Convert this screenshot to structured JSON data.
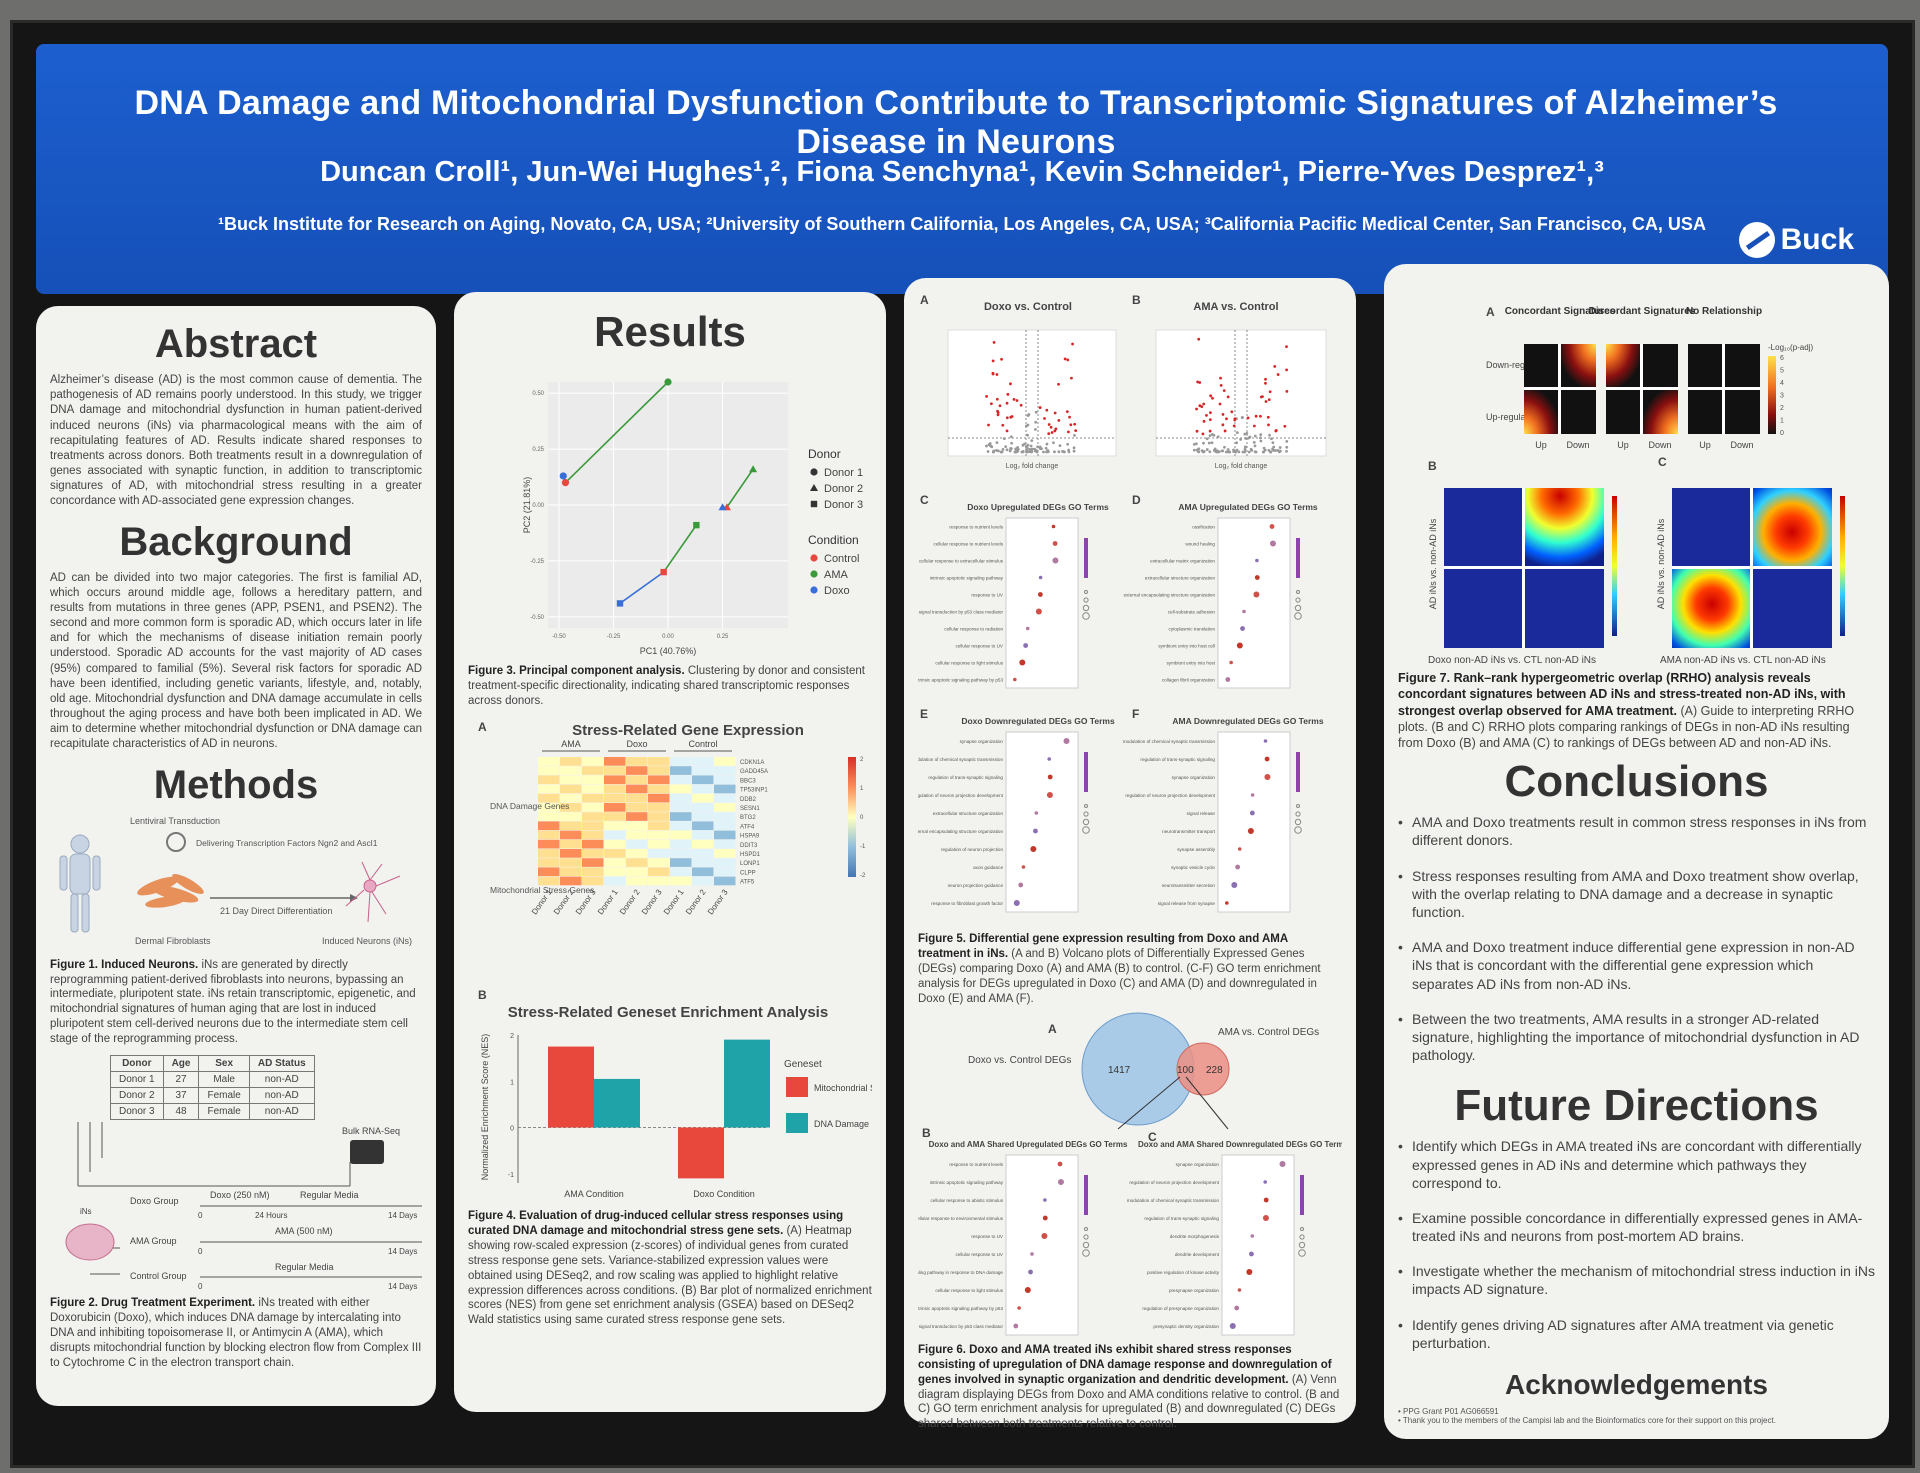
{
  "header": {
    "title": "DNA Damage and Mitochondrial Dysfunction Contribute to Transcriptomic Signatures of Alzheimer’s Disease in Neurons",
    "authors": "Duncan Croll¹, Jun-Wei Hughes¹,², Fiona Senchyna¹, Kevin Schneider¹, Pierre-Yves Desprez¹,³",
    "affiliations": "¹Buck Institute for Research on Aging, Novato, CA, USA; ²University of Southern California, Los Angeles, CA, USA; ³California Pacific Medical Center, San Francisco, CA, USA",
    "logo": "Buck"
  },
  "abstract": {
    "heading": "Abstract",
    "text": "Alzheimer’s disease (AD) is the most common cause of dementia. The pathogenesis of AD remains poorly understood. In this study, we trigger DNA damage and mitochondrial dysfunction in human patient-derived induced neurons (iNs) via pharmacological means with the aim of recapitulating features of AD. Results indicate shared responses to treatments across donors. Both treatments result in a downregulation of genes associated with synaptic function, in addition to transcriptomic signatures of AD, with mitochondrial stress resulting in a greater concordance with AD-associated gene expression changes."
  },
  "background": {
    "heading": "Background",
    "text": "AD can be divided into two major categories. The first is familial AD, which occurs around middle age, follows a hereditary pattern, and results from mutations in three genes (APP, PSEN1, and PSEN2). The second and more common form is sporadic AD, which occurs later in life and for which the mechanisms of disease initiation remain poorly understood. Sporadic AD accounts for the vast majority of AD cases (95%) compared to familial (5%). Several risk factors for sporadic AD have been identified, including genetic variants, lifestyle, and, notably, old age. Mitochondrial dysfunction and DNA damage accumulate in cells throughout the aging process and have both been implicated in AD. We aim to determine whether mitochondrial dysfunction or DNA damage can recapitulate characteristics of AD in neurons."
  },
  "methods": {
    "heading": "Methods",
    "fig1_labels": {
      "lenti": "Lentiviral Transduction",
      "deliver": "Delivering Transcription Factors Ngn2 and Ascl1",
      "diff": "21 Day Direct Differentiation",
      "fibro": "Dermal Fibroblasts",
      "ins": "Induced Neurons (iNs)"
    },
    "fig1_caption_bold": "Figure 1. Induced Neurons.",
    "fig1_caption": " iNs are generated by directly reprogramming patient-derived fibroblasts into neurons, bypassing an intermediate, pluripotent state. iNs retain transcriptomic, epigenetic, and mitochondrial signatures of human aging that are lost in induced pluripotent stem cell-derived neurons due to the intermediate stem cell stage of the reprogramming process.",
    "table": {
      "headers": [
        "Donor",
        "Age",
        "Sex",
        "AD Status"
      ],
      "rows": [
        [
          "Donor 1",
          "27",
          "Male",
          "non-AD"
        ],
        [
          "Donor 2",
          "37",
          "Female",
          "non-AD"
        ],
        [
          "Donor 3",
          "48",
          "Female",
          "non-AD"
        ]
      ]
    },
    "fig2_labels": {
      "bulk": "Bulk RNA-Seq",
      "ins": "iNs",
      "doxo_group": "Doxo Group",
      "doxo_dose": "Doxo (250 nM)",
      "regular1": "Regular Media",
      "hours": "24 Hours",
      "days14a": "14 Days",
      "ama_group": "AMA Group",
      "ama_dose": "AMA (500 nM)",
      "days14b": "14 Days",
      "control_group": "Control Group",
      "regular2": "Regular Media",
      "days14c": "14 Days",
      "zero": "0"
    },
    "fig2_caption_bold": "Figure 2. Drug Treatment Experiment.",
    "fig2_caption": " iNs treated with either Doxorubicin (Doxo), which induces DNA damage by intercalating into DNA and inhibiting topoisomerase II, or Antimycin A (AMA), which disrupts mitochondrial function by blocking electron flow from Complex III to Cytochrome C in the electron transport chain."
  },
  "results": {
    "heading": "Results",
    "pca": {
      "xlabel": "PC1 (40.76%)",
      "ylabel": "PC2 (21.81%)",
      "legend_donor_title": "Donor",
      "legend_condition_title": "Condition",
      "fig3_caption_bold": "Figure 3. Principal component analysis.",
      "fig3_caption": " Clustering by donor and consistent treatment-specific directionality, indicating shared transcriptomic responses across donors."
    },
    "heatmap": {
      "panel": "A",
      "title": "Stress-Related Gene Expression",
      "groups": [
        "AMA",
        "Doxo",
        "Control"
      ],
      "row_groups": [
        "DNA Damage Genes",
        "Mitochondrial Stress Genes"
      ],
      "genes": [
        "CDKN1A",
        "GADD45A",
        "BBC3",
        "TP53INP1",
        "DDB2",
        "SESN1",
        "BTG2",
        "ATF4",
        "HSPA9",
        "DDIT3",
        "HSPD1",
        "LONP1",
        "CLPP",
        "ATF5"
      ],
      "columns": [
        "Donor 1",
        "Donor 2",
        "Donor 3",
        "Donor 1",
        "Donor 2",
        "Donor 3",
        "Donor 1",
        "Donor 2",
        "Donor 3"
      ],
      "scale_ticks": [
        "2",
        "1",
        "0",
        "-1",
        "-2"
      ]
    },
    "gsea_panel": "B",
    "fig4_caption_bold": "Figure 4. Evaluation of drug-induced cellular stress responses using curated DNA damage and mitochondrial stress gene sets.",
    "fig4_caption": " (A) Heatmap showing row-scaled expression (z-scores) of individual genes from curated stress response gene sets. Variance-stabilized expression values were obtained using DESeq2, and row scaling was applied to highlight relative expression differences across conditions. (B) Bar plot of normalized enrichment scores (NES) from gene set enrichment analysis (GSEA) based on DESeq2 Wald statistics using same curated stress response gene sets."
  },
  "volcano": {
    "a_title": "Doxo vs. Control",
    "b_title": "AMA vs. Control",
    "xlabel": "Log₂ fold change",
    "ylabel": "-Log₁₀ P"
  },
  "go_panels": {
    "c_title": "Doxo Upregulated DEGs GO Terms",
    "c_terms": [
      "response to nutrient levels",
      "cellular response to nutrient levels",
      "cellular response to extracellular stimulus",
      "intrinsic apoptotic signaling pathway",
      "response to UV",
      "signal transduction by p53 class mediator",
      "cellular response to radiation",
      "cellular response to UV",
      "cellular response to light stimulus",
      "intrinsic apoptotic signaling pathway by p53"
    ],
    "d_title": "AMA Upregulated DEGs GO Terms",
    "d_terms": [
      "ossification",
      "wound healing",
      "extracellular matrix organization",
      "extracellular structure organization",
      "external encapsulating structure organization",
      "cell-substrate adhesion",
      "cytoplasmic translation",
      "symbiont entry into host cell",
      "symbiont entry into host",
      "collagen fibril organization"
    ],
    "e_title": "Doxo Downregulated DEGs GO Terms",
    "e_terms": [
      "synapse organization",
      "modulation of chemical synaptic transmission",
      "regulation of trans-synaptic signaling",
      "regulation of neuron projection development",
      "extracellular structure organization",
      "external encapsulating structure organization",
      "regulation of neuron projection",
      "axon guidance",
      "neuron projection guidance",
      "response to fibroblast growth factor"
    ],
    "f_title": "AMA Downregulated DEGs GO Terms",
    "f_terms": [
      "modulation of chemical synaptic transmission",
      "regulation of trans-synaptic signaling",
      "synapse organization",
      "regulation of neuron projection development",
      "signal release",
      "neurotransmitter transport",
      "synapse assembly",
      "synaptic vesicle cycle",
      "neurotransmitter secretion",
      "signal release from synapse"
    ],
    "fig5_caption_bold": "Figure 5. Differential gene expression resulting from Doxo and AMA treatment in iNs.",
    "fig5_caption": " (A and B) Volcano plots of Differentially Expressed Genes (DEGs) comparing Doxo (A) and AMA (B) to control. (C-F) GO term enrichment analysis for DEGs upregulated in Doxo (C) and AMA (D) and downregulated in Doxo (E) and AMA (F)."
  },
  "venn": {
    "panel": "A",
    "left_label": "Doxo vs. Control DEGs",
    "right_label": "AMA vs. Control DEGs",
    "left_only": "1417",
    "shared": "100",
    "right_only": "228"
  },
  "shared_go": {
    "b_title": "Doxo and AMA Shared Upregulated DEGs GO Terms",
    "b_terms": [
      "response to nutrient levels",
      "intrinsic apoptotic signaling pathway",
      "cellular response to abiotic stimulus",
      "cellular response to environmental stimulus",
      "response to UV",
      "cellular response to UV",
      "intrinsic apoptotic signaling pathway in response to DNA damage",
      "cellular response to light stimulus",
      "intrinsic apoptotic signaling pathway by p53",
      "signal transduction by p53 class mediator"
    ],
    "c_title": "Doxo and AMA Shared Downregulated DEGs GO Terms",
    "c_terms": [
      "synapse organization",
      "regulation of neuron projection development",
      "modulation of chemical synaptic transmission",
      "regulation of trans-synaptic signaling",
      "dendrite morphogenesis",
      "dendrite development",
      "positive regulation of kinase activity",
      "presynapse organization",
      "regulation of presynapse organization",
      "presynaptic density organization"
    ],
    "fig6_caption_bold": "Figure 6. Doxo and AMA treated iNs exhibit shared stress responses consisting of upregulation of DNA damage response and downregulation of genes involved in synaptic organization and dendritic development.",
    "fig6_caption": " (A) Venn diagram displaying DEGs from Doxo and AMA conditions relative to control. (B and C) GO term enrichment analysis for upregulated (B) and downregulated (C) DEGs shared between both treatments relative to control."
  },
  "rrho": {
    "panel_a": "A",
    "col_labels": [
      "Concordant Signatures",
      "Discordant Signatures",
      "No Relationship"
    ],
    "row_labels": [
      "Down-regulated",
      "Up-regulated"
    ],
    "axis_labels": [
      "Up",
      "Down",
      "Up",
      "Down",
      "Up",
      "Down"
    ],
    "scale_title": "-Log₁₀(p-adj)",
    "scale_ticks": [
      "6",
      "5",
      "4",
      "3",
      "2",
      "1",
      "0"
    ],
    "panel_b": "B",
    "panel_c": "C",
    "b_ylabel": "AD iNs vs. non-AD iNs",
    "b_xlabel": "Doxo non-AD iNs vs. CTL non-AD iNs",
    "c_ylabel": "AD iNs vs. non-AD iNs",
    "c_xlabel": "AMA non-AD iNs vs. CTL non-AD iNs",
    "fig7_caption_bold": "Figure 7. Rank–rank hypergeometric overlap (RRHO) analysis reveals concordant signatures between AD iNs and stress-treated non-AD iNs, with strongest overlap observed for AMA treatment.",
    "fig7_caption": " (A) Guide to interpreting RRHO plots. (B and C) RRHO plots comparing rankings of DEGs in non-AD iNs resulting from Doxo (B) and AMA (C) to rankings of DEGs between AD and non-AD iNs."
  },
  "conclusions": {
    "heading": "Conclusions",
    "items": [
      "AMA and Doxo treatments result in common stress responses in iNs from different donors.",
      "Stress responses resulting from AMA and Doxo treatment show overlap, with the overlap relating to DNA damage and a decrease in synaptic function.",
      "AMA and Doxo treatment induce differential gene expression in non-AD iNs that is concordant with the differential gene expression which separates AD iNs from non-AD iNs.",
      "Between the two treatments, AMA results in a stronger AD-related signature, highlighting the importance of mitochondrial dysfunction in AD pathology."
    ]
  },
  "future": {
    "heading": "Future Directions",
    "items": [
      "Identify which DEGs in AMA treated iNs are concordant with differentially expressed genes in AD iNs and determine which pathways they correspond to.",
      "Examine possible concordance in differentially expressed genes in AMA-treated iNs and neurons from post-mortem AD brains.",
      "Investigate whether the mechanism of mitochondrial stress induction in iNs impacts AD signature.",
      "Identify genes driving AD signatures after AMA treatment via genetic perturbation."
    ]
  },
  "acknowledgements": {
    "heading": "Acknowledgements",
    "lines": [
      "• PPG Grant P01 AG066591",
      "• Thank you to the members of the Campisi lab and the Bioinformatics core for their support on this project."
    ]
  },
  "colors": {
    "control": "#e8483c",
    "ama": "#3a9a3a",
    "doxo": "#3a6fd8",
    "mito": "#e8483c",
    "dna": "#1fa3a8"
  },
  "chart_data": [
    {
      "type": "scatter",
      "title": "",
      "xlabel": "PC1 (40.76%)",
      "ylabel": "PC2 (21.81%)",
      "xlim": [
        -0.55,
        0.55
      ],
      "ylim": [
        -0.55,
        0.55
      ],
      "x_ticks": [
        "-0.50",
        "-0.25",
        "0.00",
        "0.25"
      ],
      "y_ticks": [
        "0.50",
        "0.25",
        "0.00",
        "-0.25",
        "-0.50"
      ],
      "legend_donor": [
        "Donor 1",
        "Donor 2",
        "Donor 3"
      ],
      "legend_condition": [
        "Control",
        "AMA",
        "Doxo"
      ],
      "points": [
        {
          "donor": "Donor 1",
          "condition": "Control",
          "x": -0.47,
          "y": 0.1
        },
        {
          "donor": "Donor 1",
          "condition": "Doxo",
          "x": -0.48,
          "y": 0.13
        },
        {
          "donor": "Donor 1",
          "condition": "AMA",
          "x": 0.0,
          "y": 0.55
        },
        {
          "donor": "Donor 2",
          "condition": "Control",
          "x": 0.27,
          "y": -0.01
        },
        {
          "donor": "Donor 2",
          "condition": "Doxo",
          "x": 0.25,
          "y": -0.01
        },
        {
          "donor": "Donor 2",
          "condition": "AMA",
          "x": 0.39,
          "y": 0.16
        },
        {
          "donor": "Donor 3",
          "condition": "Control",
          "x": -0.02,
          "y": -0.3
        },
        {
          "donor": "Donor 3",
          "condition": "Doxo",
          "x": -0.22,
          "y": -0.44
        },
        {
          "donor": "Donor 3",
          "condition": "AMA",
          "x": 0.13,
          "y": -0.09
        }
      ]
    },
    {
      "type": "bar",
      "title": "Stress-Related Geneset Enrichment Analysis",
      "ylabel": "Normalized Enrichment Score (NES)",
      "categories": [
        "AMA Condition",
        "Doxo Condition"
      ],
      "legend_title": "Geneset",
      "ylim": [
        -1.2,
        2.0
      ],
      "y_ticks": [
        "2",
        "1",
        "0",
        "-1"
      ],
      "series": [
        {
          "name": "Mitochondrial Stress",
          "values": [
            1.75,
            -1.1
          ]
        },
        {
          "name": "DNA Damage",
          "values": [
            1.05,
            1.9
          ]
        }
      ]
    }
  ]
}
